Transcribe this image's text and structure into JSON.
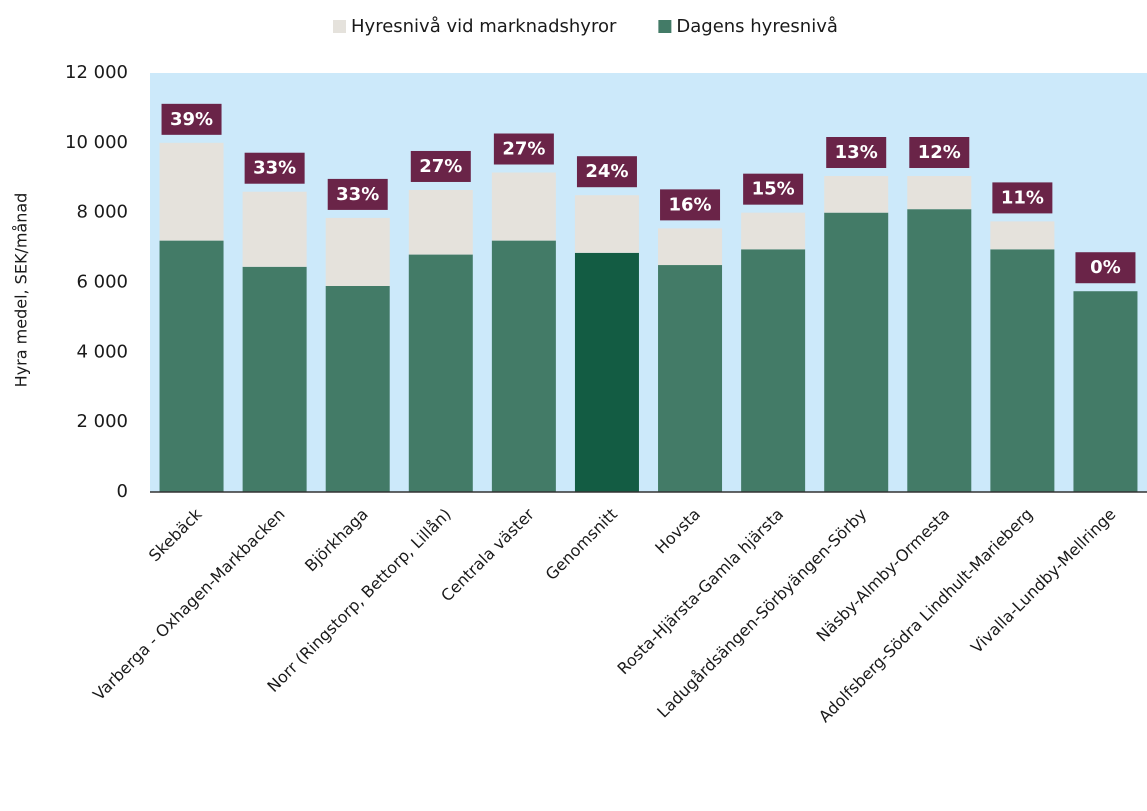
{
  "chart_data": {
    "type": "bar",
    "stacked": true,
    "ylabel": "Hyra medel, SEK/månad",
    "categories": [
      "Skebäck",
      "Varberga - Oxhagen-Markbacken",
      "Björkhaga",
      "Norr (Ringstorp, Bettorp, Lillån)",
      "Centrala väster",
      "Genomsnitt",
      "Hovsta",
      "Rosta-Hjärsta-Gamla hjärsta",
      "Ladugårdsängen-Sörbyängen-Sörby",
      "Näsby-Almby-Ormesta",
      "Adolfsberg-Södra Lindhult-Marieberg",
      "Vivalla-Lundby-Mellringe"
    ],
    "series": [
      {
        "name": "Dagens hyresnivå",
        "color": "#437b67",
        "colors": [
          "#437b67",
          "#437b67",
          "#437b67",
          "#437b67",
          "#437b67",
          "#135c43",
          "#437b67",
          "#437b67",
          "#437b67",
          "#437b67",
          "#437b67",
          "#437b67"
        ],
        "values": [
          7200,
          6450,
          5900,
          6800,
          7200,
          6850,
          6500,
          6950,
          8000,
          8100,
          6950,
          5750
        ]
      },
      {
        "name": "Hyresnivå vid marknadshyror",
        "color": "#e5e2dc",
        "values": [
          2800,
          2150,
          1950,
          1850,
          1950,
          1650,
          1050,
          1050,
          1050,
          950,
          800,
          0
        ]
      }
    ],
    "percent_labels": [
      "39%",
      "33%",
      "33%",
      "27%",
      "27%",
      "24%",
      "16%",
      "15%",
      "13%",
      "12%",
      "11%",
      "0%"
    ],
    "percent_label_color": "#6a2448",
    "plot_background": "#cce9fa",
    "ylim": [
      0,
      12000
    ],
    "yticks": [
      {
        "value": 0,
        "label": "0"
      },
      {
        "value": 2000,
        "label": "2 000"
      },
      {
        "value": 4000,
        "label": "4 000"
      },
      {
        "value": 6000,
        "label": "6 000"
      },
      {
        "value": 8000,
        "label": "8 000"
      },
      {
        "value": 10000,
        "label": "10 000"
      },
      {
        "value": 12000,
        "label": "12 000"
      }
    ],
    "legend": "top"
  }
}
